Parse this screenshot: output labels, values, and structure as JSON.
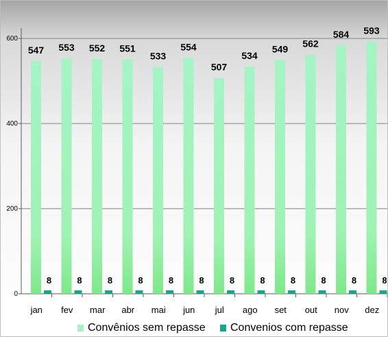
{
  "chart_data": {
    "type": "bar",
    "categories": [
      "jan",
      "fev",
      "mar",
      "abr",
      "mai",
      "jun",
      "jul",
      "ago",
      "set",
      "out",
      "nov",
      "dez"
    ],
    "series": [
      {
        "name": "Convênios sem repasse",
        "values": [
          547,
          553,
          552,
          551,
          533,
          554,
          507,
          534,
          549,
          562,
          584,
          593
        ],
        "color": "#a6f2c4"
      },
      {
        "name": "Convenios com repasse",
        "values": [
          8,
          8,
          8,
          8,
          8,
          8,
          8,
          8,
          8,
          8,
          8,
          8
        ],
        "color": "#13a88a"
      }
    ],
    "yticks": [
      0,
      200,
      400,
      600
    ],
    "ylim": [
      0,
      640
    ],
    "grid": true,
    "legend_position": "bottom"
  },
  "legend": {
    "series1": "Convênios sem repasse",
    "series2": "Convenios com repasse"
  }
}
